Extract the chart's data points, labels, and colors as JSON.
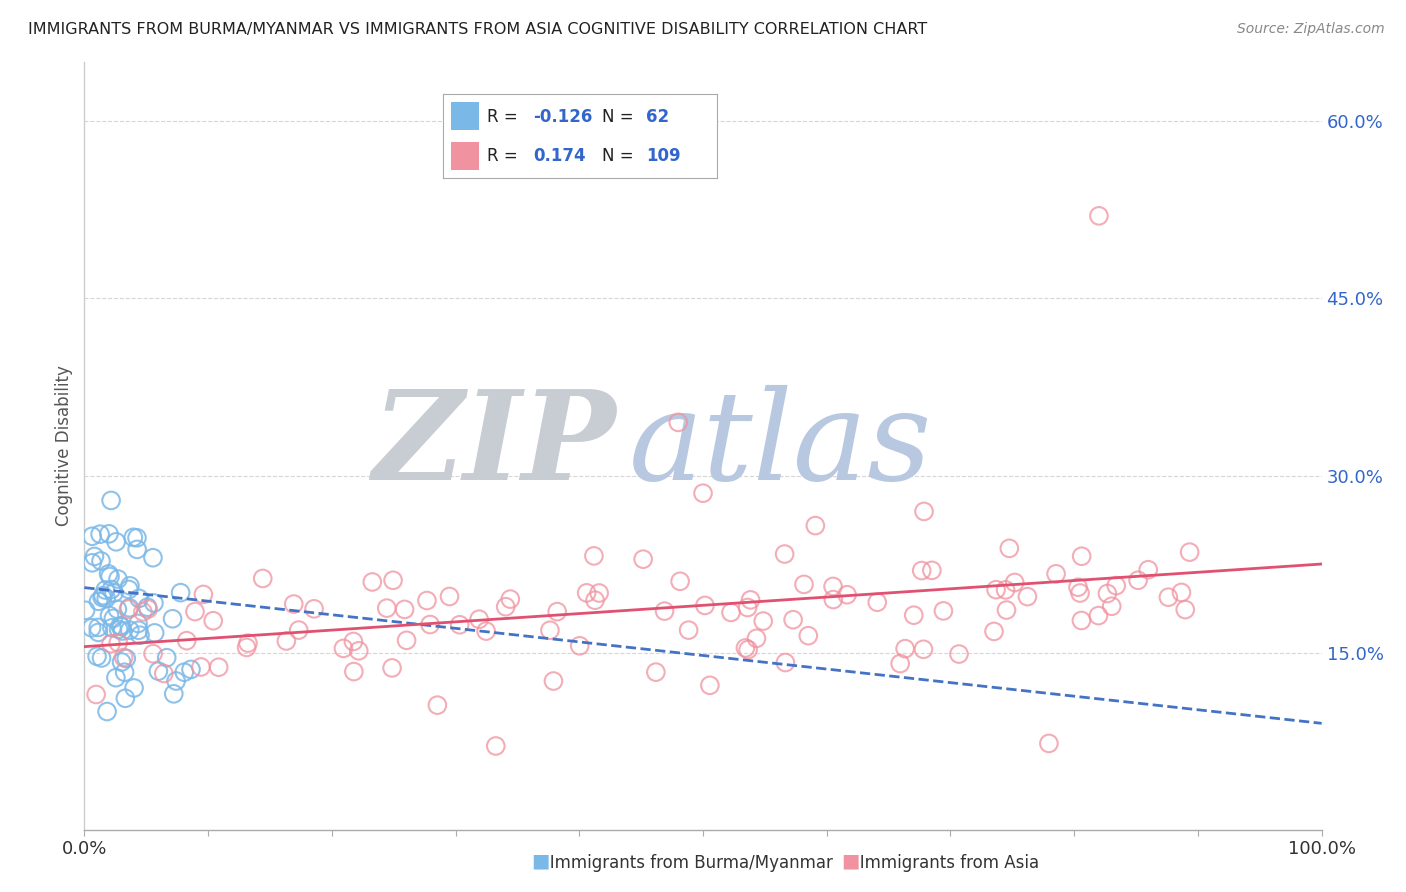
{
  "title": "IMMIGRANTS FROM BURMA/MYANMAR VS IMMIGRANTS FROM ASIA COGNITIVE DISABILITY CORRELATION CHART",
  "source": "Source: ZipAtlas.com",
  "xlabel_left": "Immigrants from Burma/Myanmar",
  "xlabel_right": "Immigrants from Asia",
  "ylabel": "Cognitive Disability",
  "blue_R": -0.126,
  "blue_N": 62,
  "pink_R": 0.174,
  "pink_N": 109,
  "blue_color": "#7ab8e8",
  "pink_color": "#f0929f",
  "blue_line_color": "#4472c4",
  "pink_line_color": "#e05070",
  "right_yticks": [
    0.15,
    0.3,
    0.45,
    0.6
  ],
  "right_ytick_labels": [
    "15.0%",
    "30.0%",
    "45.0%",
    "60.0%"
  ],
  "xlim": [
    0.0,
    1.0
  ],
  "ylim": [
    0.0,
    0.65
  ],
  "background_color": "#ffffff",
  "grid_color": "#cccccc",
  "watermark_ZIP": "ZIP",
  "watermark_atlas": "atlas",
  "watermark_color_ZIP": "#c8cdd4",
  "watermark_color_atlas": "#b8c8e0"
}
